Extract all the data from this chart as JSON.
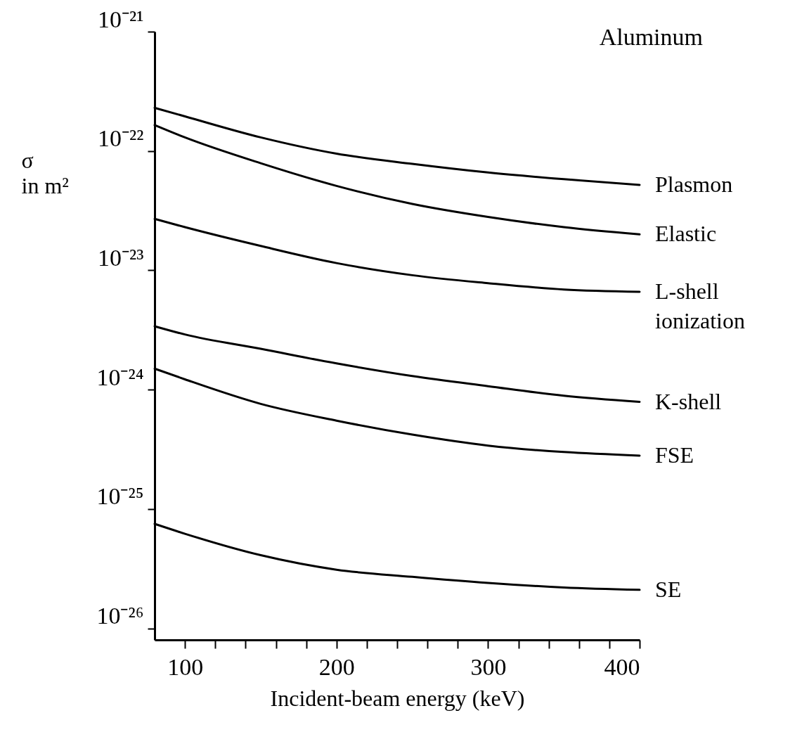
{
  "chart_data": {
    "type": "line",
    "title": "Aluminum",
    "xlabel": "Incident-beam energy (keV)",
    "ylabel": "σ in m²",
    "x": [
      80,
      100,
      150,
      200,
      250,
      300,
      350,
      400
    ],
    "series": [
      {
        "name": "Plasmon",
        "color": "#000000",
        "values": [
          2.3e-22,
          1.95e-22,
          1.3e-22,
          9.5e-23,
          7.8e-23,
          6.6e-23,
          5.8e-23,
          5.2e-23
        ]
      },
      {
        "name": "Elastic",
        "color": "#000000",
        "values": [
          1.65e-22,
          1.3e-22,
          7.9e-23,
          5.1e-23,
          3.6e-23,
          2.8e-23,
          2.3e-23,
          2e-23
        ]
      },
      {
        "name": "L-shell ionization",
        "color": "#000000",
        "values": [
          2.7e-23,
          2.3e-23,
          1.6e-23,
          1.15e-23,
          9.1e-24,
          7.8e-24,
          6.9e-24,
          6.6e-24
        ]
      },
      {
        "name": "K-shell",
        "color": "#000000",
        "values": [
          3.4e-24,
          2.9e-24,
          2.2e-24,
          1.66e-24,
          1.3e-24,
          1.07e-24,
          8.9e-25,
          7.9e-25
        ]
      },
      {
        "name": "FSE",
        "color": "#000000",
        "values": [
          1.5e-24,
          1.22e-24,
          7.6e-25,
          5.5e-25,
          4.2e-25,
          3.4e-25,
          3e-25,
          2.8e-25
        ]
      },
      {
        "name": "SE",
        "color": "#000000",
        "values": [
          7.5e-26,
          6.2e-26,
          4.1e-26,
          3.1e-26,
          2.7e-26,
          2.4e-26,
          2.2e-26,
          2.1e-26
        ]
      }
    ],
    "log": "y",
    "grid": false,
    "legend": false,
    "marker": "none",
    "line_style": "solid",
    "xlim": [
      80,
      400
    ],
    "xticks": [
      100,
      {
        "value": 120,
        "label": null
      },
      {
        "value": 140,
        "label": null
      },
      {
        "value": 160,
        "label": null
      },
      {
        "value": 180,
        "label": null
      },
      200,
      {
        "value": 220,
        "label": null
      },
      {
        "value": 240,
        "label": null
      },
      {
        "value": 260,
        "label": null
      },
      {
        "value": 280,
        "label": null
      },
      300,
      {
        "value": 320,
        "label": null
      },
      {
        "value": 340,
        "label": null
      },
      {
        "value": 360,
        "label": null
      },
      {
        "value": 380,
        "label": null
      },
      400
    ],
    "ylim": [
      8e-27,
      1e-21
    ],
    "yticks": [
      {
        "value": 1e-21,
        "label": "10⁻²¹"
      },
      {
        "value": 1e-22,
        "label": "10⁻²²"
      },
      {
        "value": 1e-23,
        "label": "10⁻²³"
      },
      {
        "value": 1e-24,
        "label": "10⁻²⁴"
      },
      {
        "value": 1e-25,
        "label": "10⁻²⁵"
      },
      {
        "value": 1e-26,
        "label": "10⁻²⁶"
      }
    ]
  }
}
